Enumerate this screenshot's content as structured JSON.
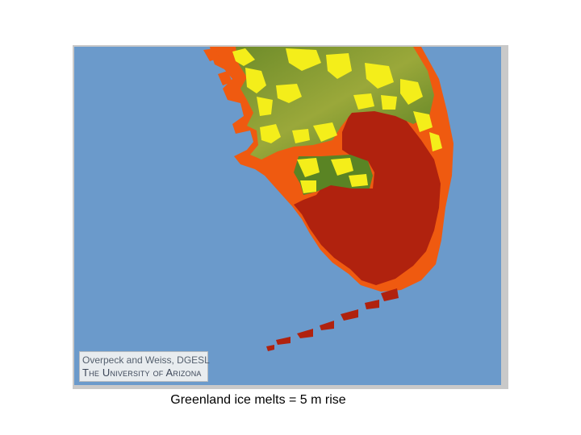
{
  "map": {
    "credit_line1": "Overpeck and Weiss, DGESL",
    "credit_line2": "The University of Arizona",
    "colors": {
      "ocean": "#6b9acb",
      "land_high": "#4e7a1e",
      "land_mid": "#8aa02c",
      "yellow_zone": "#f4ee1a",
      "inundated": "#ef5a10",
      "deep_inundated": "#b0220e"
    }
  },
  "caption": "Greenland ice melts = 5 m rise"
}
